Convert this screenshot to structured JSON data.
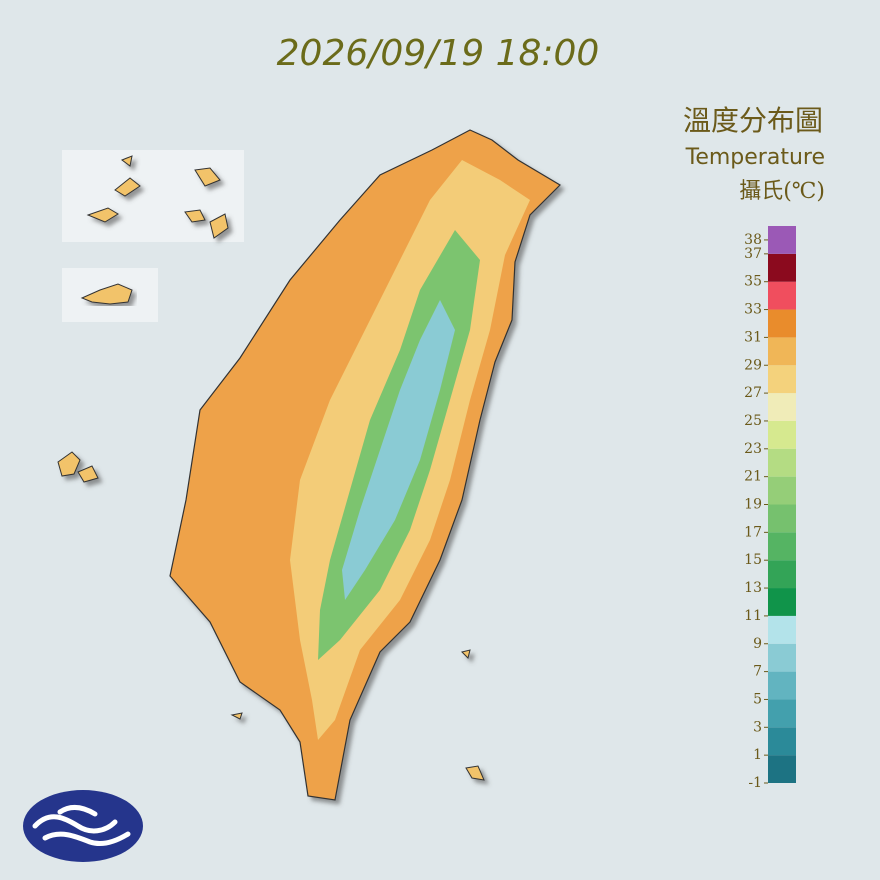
{
  "header": {
    "timestamp": "2026/09/19 18:00"
  },
  "legend": {
    "title": "溫度分布圖",
    "subtitle": "Temperature",
    "unit": "攝氏(℃)",
    "range": [
      -1,
      39
    ],
    "ticks": [
      38,
      37,
      35,
      33,
      31,
      29,
      27,
      25,
      23,
      21,
      19,
      17,
      15,
      13,
      11,
      9,
      7,
      5,
      3,
      1,
      -1
    ],
    "colors": [
      "#1d7383",
      "#2b8a99",
      "#43a0ad",
      "#62b4c0",
      "#8acbd4",
      "#b3e3ea",
      "#10944a",
      "#33a457",
      "#55b463",
      "#76c16e",
      "#95ce78",
      "#b4dc83",
      "#d6e98f",
      "#f0ecb8",
      "#f4d27c",
      "#f0b657",
      "#e98c2c",
      "#f04e5e",
      "#8b0a1e",
      "#9b59b6"
    ]
  }
}
